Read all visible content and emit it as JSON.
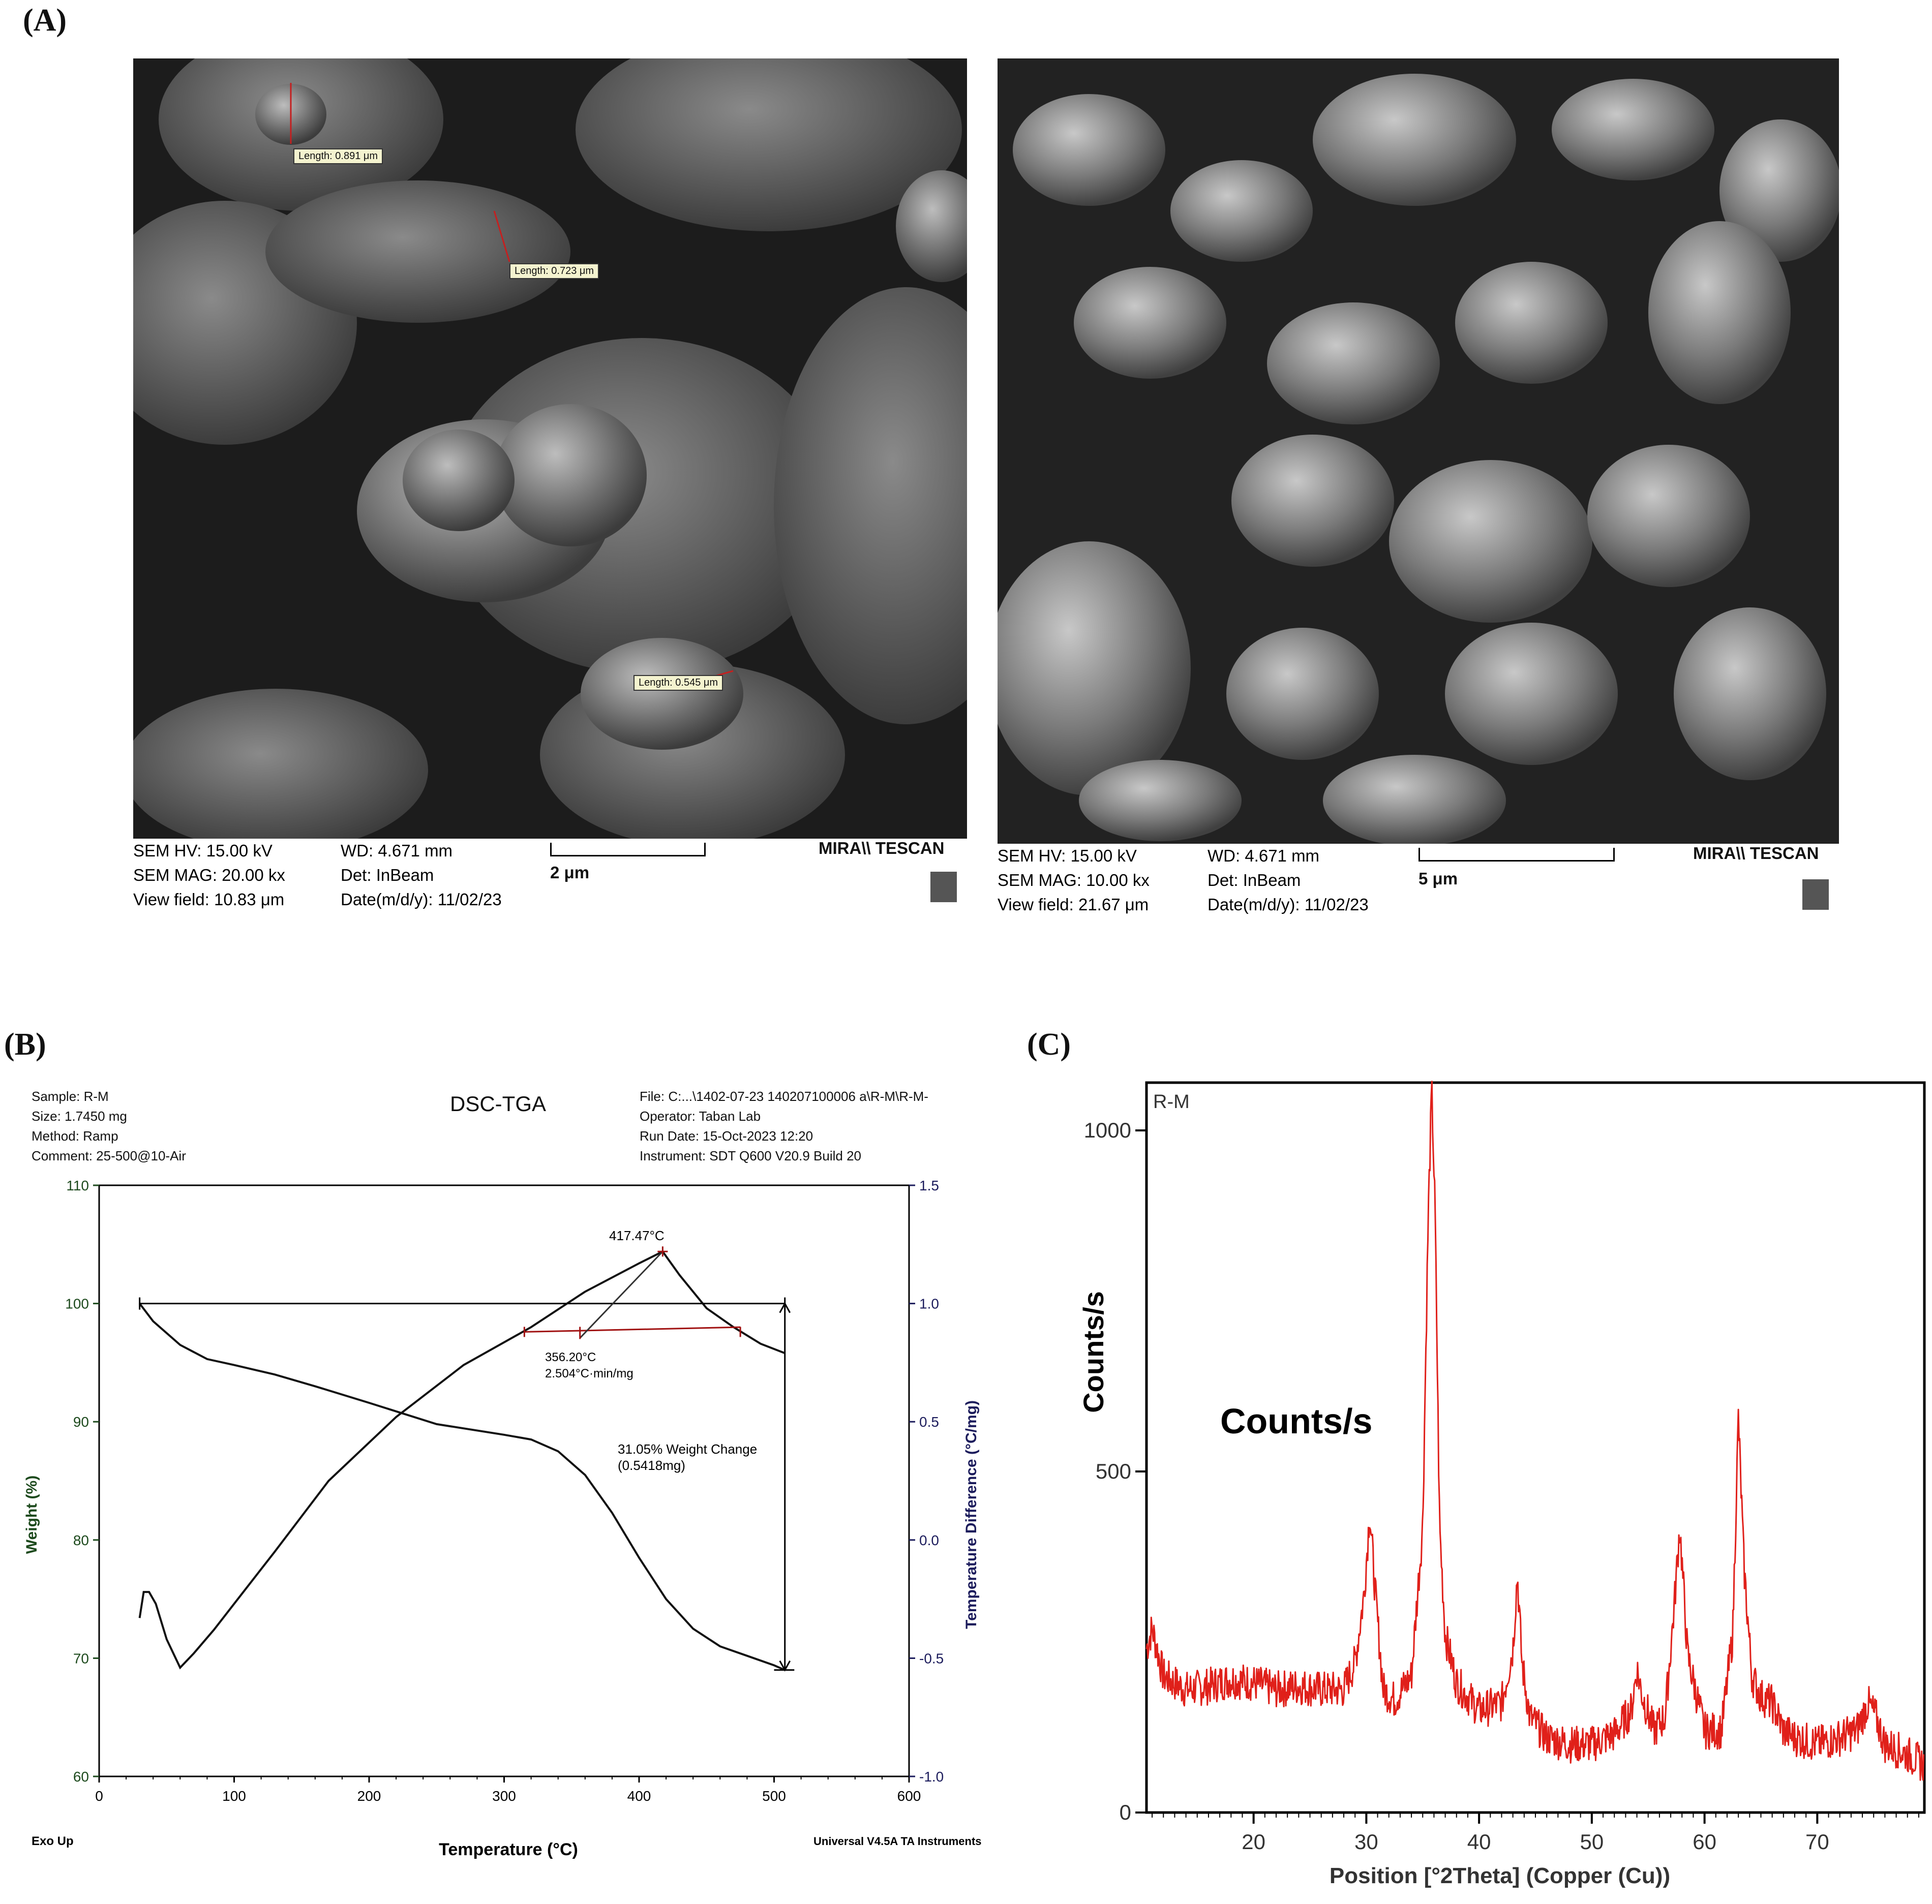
{
  "panels": {
    "a": "(A)",
    "b": "(B)",
    "c": "(C)"
  },
  "sem_left": {
    "hv": "SEM HV: 15.00 kV",
    "mag": "SEM MAG: 20.00 kx",
    "view": "View field: 10.83 μm",
    "wd": "WD: 4.671 mm",
    "det": "Det: InBeam",
    "date": "Date(m/d/y): 11/02/23",
    "scale": "2 μm",
    "brand": "MIRA\\\\ TESCAN",
    "measurements": [
      "Length: 0.891 μm",
      "Length: 0.723 μm",
      "Length: 0.545 μm"
    ]
  },
  "sem_right": {
    "hv": "SEM HV: 15.00 kV",
    "mag": "SEM MAG: 10.00 kx",
    "view": "View field: 21.67 μm",
    "wd": "WD: 4.671 mm",
    "det": "Det: InBeam",
    "date": "Date(m/d/y): 11/02/23",
    "scale": "5 μm",
    "brand": "MIRA\\\\ TESCAN"
  },
  "colors": {
    "tga_left_axis": "#1d4a1d",
    "tga_right_axis": "#1c1c5c",
    "xrd_line": "#e0201a",
    "marker": "#a01010"
  },
  "chart_data": [
    {
      "type": "line",
      "title": "DSC-TGA",
      "header_left": [
        "Sample: R-M",
        "Size:  1.7450 mg",
        "Method: Ramp",
        "Comment: 25-500@10-Air"
      ],
      "header_right": [
        "File: C:...\\1402-07-23 140207100006 a\\R-M\\R-M-",
        "Operator: Taban Lab",
        "Run Date: 15-Oct-2023 12:20",
        "Instrument: SDT Q600 V20.9 Build 20"
      ],
      "xlabel": "Temperature (°C)",
      "ylabel": "Weight (%)",
      "y2label": "Temperature Difference (°C/mg)",
      "xlim": [
        0,
        600
      ],
      "ylim": [
        60,
        110
      ],
      "y2lim": [
        -1.0,
        1.5
      ],
      "xticks": [
        "0",
        "100",
        "200",
        "300",
        "400",
        "500",
        "600"
      ],
      "yticks": [
        "60",
        "70",
        "80",
        "90",
        "100",
        "110"
      ],
      "y2ticks": [
        "-1.0",
        "-0.5",
        "0.0",
        "0.5",
        "1.0",
        "1.5"
      ],
      "footer_left": "Exo Up",
      "footer_right": "Universal V4.5A TA Instruments",
      "series": [
        {
          "axis": "left",
          "x": [
            30,
            40,
            60,
            80,
            100,
            130,
            160,
            200,
            250,
            300,
            320,
            340,
            360,
            380,
            400,
            420,
            440,
            460,
            480,
            500,
            508
          ],
          "y": [
            100.0,
            98.5,
            96.5,
            95.3,
            94.8,
            94.0,
            93.0,
            91.6,
            89.8,
            88.9,
            88.5,
            87.5,
            85.5,
            82.3,
            78.5,
            75.0,
            72.5,
            71.0,
            70.2,
            69.4,
            69.0
          ]
        },
        {
          "axis": "right",
          "x": [
            30,
            33,
            37,
            42,
            50,
            60,
            70,
            85,
            100,
            130,
            170,
            220,
            270,
            320,
            360,
            400,
            417.47,
            430,
            450,
            470,
            490,
            508
          ],
          "y": [
            -0.33,
            -0.22,
            -0.22,
            -0.27,
            -0.42,
            -0.54,
            -0.48,
            -0.38,
            -0.27,
            -0.05,
            0.25,
            0.52,
            0.74,
            0.9,
            1.05,
            1.17,
            1.22,
            1.12,
            0.98,
            0.9,
            0.83,
            0.79
          ]
        }
      ],
      "annotations": {
        "peak": "417.47°C",
        "onset_temp": "356.20°C",
        "onset_slope": "2.504°C·min/mg",
        "weight_change": "31.05% Weight Change",
        "weight_change_mass": "(0.5418mg)"
      }
    },
    {
      "type": "line",
      "title": "",
      "legend_label": "R-M",
      "overlay_label": "Counts/s",
      "xlabel": "Position [°2Theta] (Copper (Cu))",
      "ylabel": "Counts/s",
      "xlim": [
        10.5,
        79.5
      ],
      "ylim": [
        0,
        1070
      ],
      "xticks": [
        "20",
        "30",
        "40",
        "50",
        "60",
        "70"
      ],
      "yticks": [
        "0",
        "500",
        "1000"
      ],
      "series": [
        {
          "name": "R-M",
          "x": [
            10.5,
            11,
            12,
            14,
            16,
            18,
            20,
            22,
            24,
            26,
            28,
            29,
            29.8,
            30.3,
            30.8,
            31.5,
            32.5,
            34,
            35,
            35.5,
            35.8,
            36.1,
            36.5,
            37,
            38,
            40,
            42,
            43,
            43.4,
            43.8,
            44.5,
            46,
            48,
            50,
            52,
            53.5,
            54,
            54.5,
            55.5,
            56.5,
            57.3,
            57.8,
            58.5,
            60,
            61.5,
            62.5,
            63.0,
            63.5,
            64.2,
            65,
            66,
            67,
            68,
            70,
            72,
            73.5,
            74.5,
            75.2,
            76,
            78,
            79.5
          ],
          "y": [
            240,
            270,
            200,
            180,
            185,
            195,
            190,
            180,
            185,
            180,
            180,
            220,
            320,
            440,
            320,
            180,
            165,
            200,
            420,
            880,
            1060,
            880,
            420,
            260,
            190,
            150,
            160,
            240,
            350,
            220,
            140,
            110,
            100,
            100,
            115,
            150,
            210,
            170,
            120,
            140,
            300,
            420,
            230,
            120,
            120,
            260,
            580,
            360,
            200,
            170,
            160,
            120,
            110,
            100,
            110,
            120,
            160,
            140,
            100,
            85,
            70
          ]
        }
      ]
    }
  ]
}
